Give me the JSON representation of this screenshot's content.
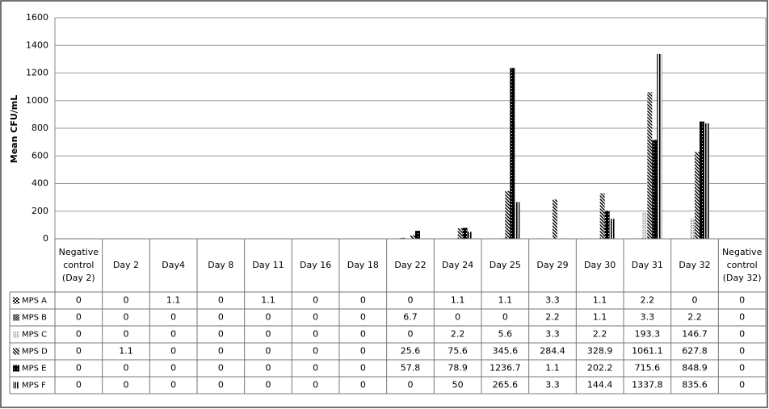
{
  "chart_data": {
    "type": "bar",
    "y_label": "Mean CFU/mL",
    "categories": [
      "Negative control (Day 2)",
      "Day 2",
      "Day4",
      "Day 8",
      "Day 11",
      "Day 16",
      "Day 18",
      "Day 22",
      "Day 24",
      "Day 25",
      "Day 29",
      "Day 30",
      "Day 31",
      "Day 32",
      "Negative control (Day 32)"
    ],
    "series": [
      {
        "name": "MPS A",
        "color": "#000000",
        "pattern": "checker",
        "values": [
          0,
          0,
          1.1,
          0,
          1.1,
          0,
          0,
          0,
          1.1,
          1.1,
          3.3,
          1.1,
          2.2,
          0,
          0
        ]
      },
      {
        "name": "MPS B",
        "color": "#000000",
        "pattern": "diag-dense",
        "values": [
          0,
          0,
          0,
          0,
          0,
          0,
          0,
          6.7,
          0,
          0,
          2.2,
          1.1,
          3.3,
          2.2,
          0
        ]
      },
      {
        "name": "MPS C",
        "color": "#888888",
        "pattern": "dots",
        "values": [
          0,
          0,
          0,
          0,
          0,
          0,
          0,
          0,
          2.2,
          5.6,
          3.3,
          2.2,
          193.3,
          146.7,
          0
        ]
      },
      {
        "name": "MPS D",
        "color": "#000000",
        "pattern": "diag",
        "values": [
          0,
          1.1,
          0,
          0,
          0,
          0,
          0,
          25.6,
          75.6,
          345.6,
          284.4,
          328.9,
          1061.1,
          627.8,
          0
        ]
      },
      {
        "name": "MPS E",
        "color": "#000000",
        "pattern": "solid",
        "values": [
          0,
          0,
          0,
          0,
          0,
          0,
          0,
          57.8,
          78.9,
          1236.7,
          1.1,
          202.2,
          715.6,
          848.9,
          0
        ]
      },
      {
        "name": "MPS F",
        "color": "#000000",
        "pattern": "vertical",
        "values": [
          0,
          0,
          0,
          0,
          0,
          0,
          0,
          0,
          50,
          265.6,
          3.3,
          144.4,
          1337.8,
          835.6,
          0
        ]
      }
    ],
    "ylim": [
      0,
      1600
    ],
    "yticks": [
      0,
      200,
      400,
      600,
      800,
      1000,
      1200,
      1400,
      1600
    ],
    "grid": true
  }
}
